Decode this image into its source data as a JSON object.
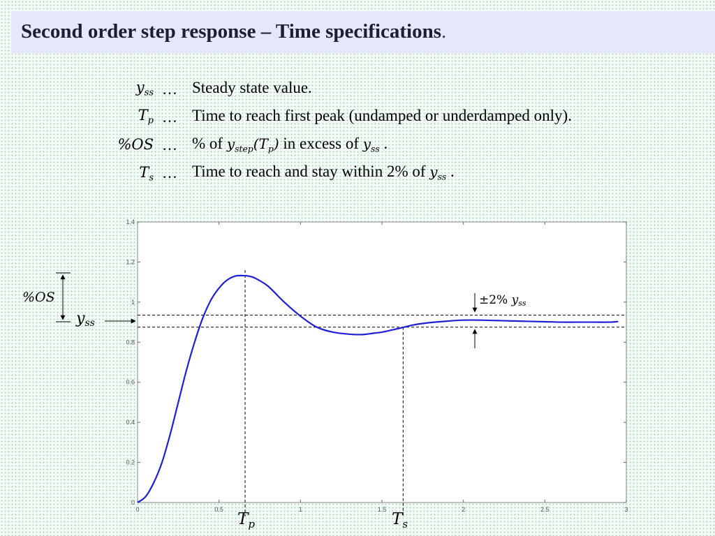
{
  "title": {
    "main": "Second order step response – Time specifications",
    "dot": "."
  },
  "definitions": [
    {
      "symbol": "y",
      "sub": "ss",
      "dots": "…",
      "text": "Steady state value."
    },
    {
      "symbol": "T",
      "sub": "p",
      "dots": "…",
      "text": "Time to reach first peak (undamped or underdamped only)."
    },
    {
      "symbol": "%OS",
      "sub": "",
      "dots": "…",
      "text_before": "% of ",
      "inline1_sym": "y",
      "inline1_sub": "step",
      "inline1_arg": "(T",
      "inline1_arg_sub": "p",
      "inline1_close": ")",
      "text_mid": " in excess of ",
      "inline2_sym": "y",
      "inline2_sub": "ss",
      "text_after": " ."
    },
    {
      "symbol": "T",
      "sub": "s",
      "dots": "…",
      "text_before": "Time to reach and stay within 2% of ",
      "inline_sym": "y",
      "inline_sub": "ss",
      "text_after": " ."
    }
  ],
  "chart_data": {
    "type": "line",
    "xlim": [
      0,
      3
    ],
    "ylim": [
      0,
      1.4
    ],
    "x_ticks": [
      "0",
      "0.5",
      "1",
      "1.5",
      "2",
      "2.5",
      "3"
    ],
    "y_ticks": [
      "0",
      "0.2",
      "0.4",
      "0.6",
      "0.8",
      "1",
      "1.2",
      "1.4"
    ],
    "grid": false,
    "series": [
      {
        "color": "#1f1fd6",
        "x": [
          0,
          0.05,
          0.1,
          0.15,
          0.2,
          0.25,
          0.3,
          0.35,
          0.4,
          0.45,
          0.5,
          0.55,
          0.6,
          0.65,
          0.68,
          0.72,
          0.8,
          0.9,
          1.0,
          1.1,
          1.2,
          1.3,
          1.38,
          1.45,
          1.5,
          1.6,
          1.7,
          1.8,
          1.9,
          2.0,
          2.1,
          2.2,
          2.3,
          2.4,
          2.5,
          2.6,
          2.7,
          2.8,
          2.9,
          2.95
        ],
        "y": [
          0,
          0.03,
          0.1,
          0.2,
          0.34,
          0.5,
          0.66,
          0.8,
          0.92,
          1.01,
          1.07,
          1.11,
          1.13,
          1.132,
          1.13,
          1.12,
          1.08,
          1.0,
          0.93,
          0.875,
          0.85,
          0.84,
          0.838,
          0.845,
          0.85,
          0.868,
          0.887,
          0.898,
          0.905,
          0.91,
          0.91,
          0.908,
          0.906,
          0.904,
          0.902,
          0.9,
          0.9,
          0.9,
          0.9,
          0.903
        ]
      }
    ],
    "band_upper": 0.935,
    "band_lower": 0.875,
    "Tp": 0.66,
    "Ts": 1.63,
    "annotations": {
      "os_label": "%OS",
      "yss_label": "y",
      "yss_sub": "ss",
      "band_label": "±2% ",
      "band_sym": "y",
      "band_sub": "ss",
      "tp_label": "T",
      "tp_sub": "p",
      "ts_label": "T",
      "ts_sub": "s"
    }
  }
}
